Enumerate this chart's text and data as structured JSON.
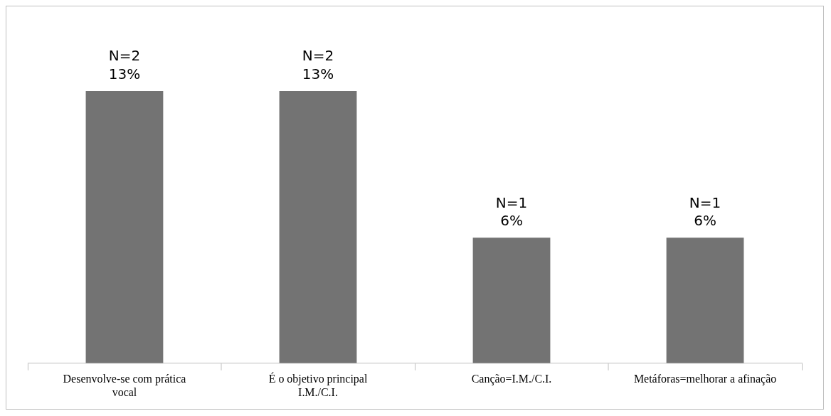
{
  "chart_data": {
    "type": "bar",
    "categories": [
      "Desenvolve-se com prática vocal",
      "É o objetivo principal I.M./C.I.",
      "Canção=I.M./C.I.",
      "Metáforas=melhorar a afinação"
    ],
    "values": [
      13,
      13,
      6,
      6
    ],
    "value_labels": [
      "N=2\n13%",
      "N=2\n13%",
      "N=1\n6%",
      "N=1\n6%"
    ],
    "color": "#737373",
    "grid": false,
    "legend": false
  }
}
